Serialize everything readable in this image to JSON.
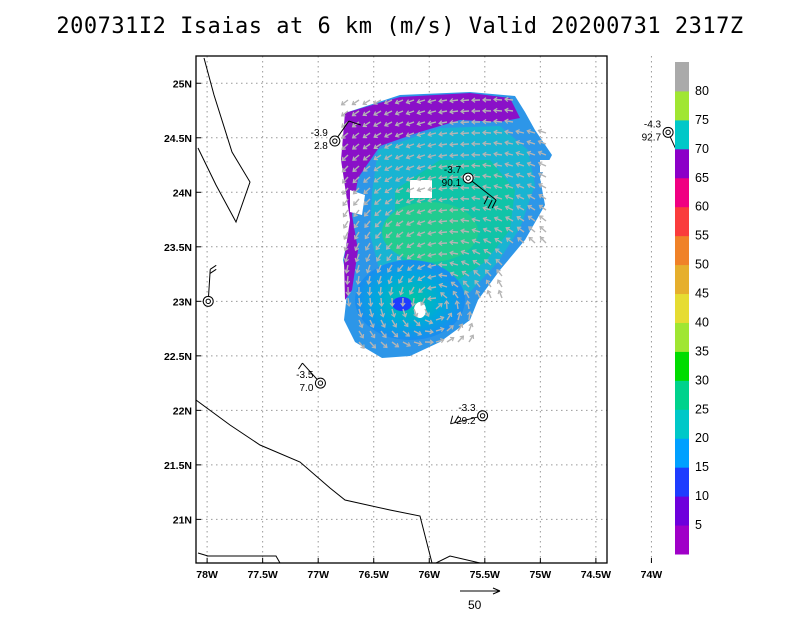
{
  "title": "200731I2 Isaias at 6 km (m/s) Valid 20200731 2317Z",
  "map": {
    "lon_range": [
      -78.1,
      -74.4
    ],
    "lat_range": [
      20.6,
      25.25
    ],
    "lon_ticks": [
      {
        "value": -78.0,
        "label": "78W"
      },
      {
        "value": -77.5,
        "label": "77.5W"
      },
      {
        "value": -77.0,
        "label": "77W"
      },
      {
        "value": -76.5,
        "label": "76.5W"
      },
      {
        "value": -76.0,
        "label": "76W"
      },
      {
        "value": -75.5,
        "label": "75.5W"
      },
      {
        "value": -75.0,
        "label": "75W"
      },
      {
        "value": -74.5,
        "label": "74.5W"
      },
      {
        "value": -74.0,
        "label": "74W"
      }
    ],
    "lat_ticks": [
      {
        "value": 21.0,
        "label": "21N"
      },
      {
        "value": 21.5,
        "label": "21.5N"
      },
      {
        "value": 22.0,
        "label": "22N"
      },
      {
        "value": 22.5,
        "label": "22.5N"
      },
      {
        "value": 23.0,
        "label": "23N"
      },
      {
        "value": 23.5,
        "label": "23.5N"
      },
      {
        "value": 24.0,
        "label": "24N"
      },
      {
        "value": 24.5,
        "label": "24.5N"
      },
      {
        "value": 25.0,
        "label": "25N"
      }
    ],
    "grid": true,
    "storm_center": {
      "lon": -75.95,
      "lat": 22.95
    }
  },
  "stations": [
    {
      "lon": -76.85,
      "lat": 24.47,
      "top": "-3.9",
      "bottom": "2.8"
    },
    {
      "lon": -75.65,
      "lat": 24.13,
      "top": "-3.7",
      "bottom": "90.1"
    },
    {
      "lon": -73.85,
      "lat": 24.55,
      "top": "-4.3",
      "bottom": "92.7"
    },
    {
      "lon": -77.99,
      "lat": 23.0,
      "top": "",
      "bottom": ""
    },
    {
      "lon": -76.98,
      "lat": 22.25,
      "top": "-3.5",
      "bottom": "7.0"
    },
    {
      "lon": -75.52,
      "lat": 21.95,
      "top": "-3.3",
      "bottom": "29.2"
    }
  ],
  "colorbar": {
    "labels": [
      "5",
      "10",
      "15",
      "20",
      "25",
      "30",
      "35",
      "40",
      "45",
      "50",
      "55",
      "60",
      "65",
      "70",
      "75",
      "80"
    ],
    "colors": [
      "#a000c8",
      "#6e00dc",
      "#1e3cff",
      "#00a0ff",
      "#00c8c8",
      "#00d28c",
      "#00dc00",
      "#a0e632",
      "#e6dc32",
      "#e6af2d",
      "#f08228",
      "#fa3c3c",
      "#f00082",
      "#8c00c8",
      "#00c8c8",
      "#a0e632",
      "#aaaaaa"
    ]
  },
  "reference_vector": {
    "label": "50"
  }
}
